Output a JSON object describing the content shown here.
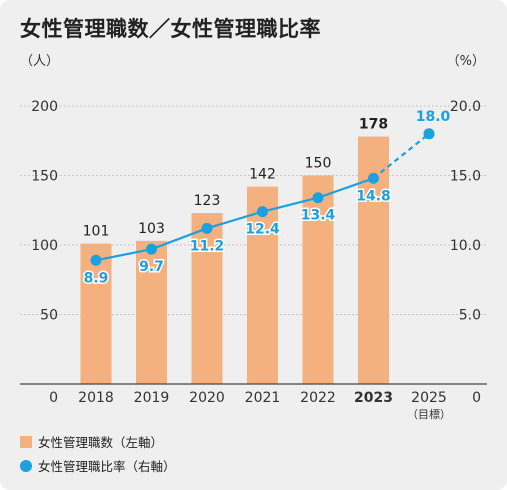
{
  "title": "女性管理職数／女性管理職比率",
  "left_unit": "（人）",
  "right_unit": "（%）",
  "colors": {
    "bar": "#f5b080",
    "line": "#1ba1df",
    "grid": "#c4c4c4",
    "background": "#efefef"
  },
  "chart_data": {
    "type": "bar+line",
    "categories": [
      "2018",
      "2019",
      "2020",
      "2021",
      "2022",
      "2023",
      "2025"
    ],
    "category_notes": {
      "2025": "（目標）"
    },
    "highlight_category": "2023",
    "left_axis": {
      "ylim": [
        0,
        200
      ],
      "ticks": [
        "0",
        "50",
        "100",
        "150",
        "200"
      ]
    },
    "right_axis": {
      "ylim": [
        0,
        20
      ],
      "ticks": [
        "0",
        "5.0",
        "10.0",
        "15.0",
        "20.0"
      ]
    },
    "grid": true,
    "series": [
      {
        "name": "女性管理職数（左軸）",
        "type": "bar",
        "axis": "left",
        "values": [
          101,
          103,
          123,
          142,
          150,
          178,
          null
        ],
        "labels": [
          "101",
          "103",
          "123",
          "142",
          "150",
          "178",
          ""
        ]
      },
      {
        "name": "女性管理職比率（右軸）",
        "type": "line",
        "axis": "right",
        "values": [
          8.9,
          9.7,
          11.2,
          12.4,
          13.4,
          14.8,
          18.0
        ],
        "labels": [
          "8.9",
          "9.7",
          "11.2",
          "12.4",
          "13.4",
          "14.8",
          "18.0"
        ],
        "dashed_from_index": 5
      }
    ]
  }
}
